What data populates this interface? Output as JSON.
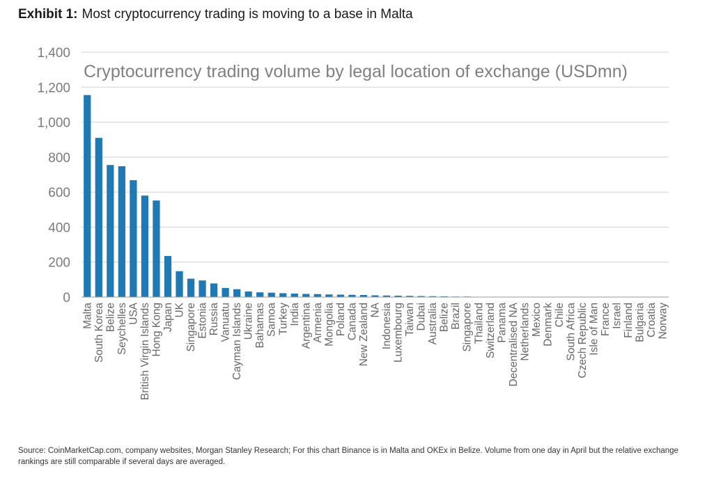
{
  "exhibit": {
    "label": "Exhibit 1:",
    "title": "Most cryptocurrency trading is moving to a base in Malta"
  },
  "source_note": "Source: CoinMarketCap.com, company websites, Morgan Stanley Research; For this chart Binance is in Malta and OKEx in Belize. Volume from one day in April but the relative exchange rankings are still comparable if several days are averaged.",
  "colors": {
    "bar": "#1f7ab4",
    "grid": "#d0d0d0",
    "axis": "#9a9a9a"
  },
  "chart_data": {
    "type": "bar",
    "title": "Cryptocurrency trading volume by legal location of exchange (USDmn)",
    "xlabel": "",
    "ylabel": "",
    "ylim": [
      0,
      1400
    ],
    "yticks": [
      0,
      200,
      400,
      600,
      800,
      1000,
      1200,
      1400
    ],
    "ytick_labels": [
      "0",
      "200",
      "400",
      "600",
      "800",
      "1,000",
      "1,200",
      "1,400"
    ],
    "grid": true,
    "legend": "none",
    "categories": [
      "Malta",
      "South Korea",
      "Belize",
      "Seychelles",
      "USA",
      "British Virgin Islands",
      "Hong Kong",
      "Japan",
      "UK",
      "Singapore",
      "Estonia",
      "Russia",
      "Vanuatu",
      "Cayman Islands",
      "Ukraine",
      "Bahamas",
      "Samoa",
      "Turkey",
      "India",
      "Argentina",
      "Armenia",
      "Mongolia",
      "Poland",
      "Canada",
      "New Zealand",
      "NA",
      "Indonesia",
      "Luxembourg",
      "Taiwan",
      "Dubai",
      "Australia",
      "Belize",
      "Brazil",
      "Singapore",
      "Thailand",
      "Switzerland",
      "Panama",
      "Decentralised NA",
      "Netherlands",
      "Mexico",
      "Denmark",
      "Chile",
      "South Africa",
      "Czech Republic",
      "Isle of Man",
      "France",
      "Israel",
      "Finland",
      "Bulgaria",
      "Croatia",
      "Norway"
    ],
    "values": [
      1155,
      910,
      755,
      748,
      668,
      580,
      552,
      235,
      148,
      105,
      95,
      78,
      52,
      45,
      32,
      27,
      25,
      22,
      20,
      18,
      17,
      15,
      14,
      13,
      12,
      10,
      9,
      8,
      7,
      6,
      5,
      4,
      3,
      3,
      2,
      2,
      2,
      1,
      1,
      1,
      1,
      1,
      1,
      1,
      1,
      1,
      1,
      1,
      1,
      1,
      1
    ]
  }
}
